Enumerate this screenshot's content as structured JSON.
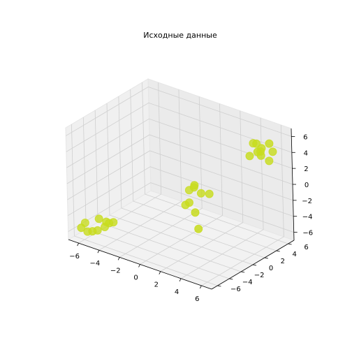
{
  "chart_data": {
    "type": "scatter",
    "title": "Исходные данные",
    "xlabel": "",
    "ylabel": "",
    "zlabel": "",
    "x_ticks": [
      "−6",
      "−4",
      "−2",
      "0",
      "2",
      "4",
      "6"
    ],
    "y_ticks": [
      "−6",
      "−4",
      "−2",
      "0",
      "2",
      "4",
      "6"
    ],
    "z_ticks": [
      "−6",
      "−4",
      "−2",
      "0",
      "2",
      "4",
      "6"
    ],
    "xlim": [
      -7,
      7
    ],
    "ylim": [
      -7,
      7
    ],
    "zlim": [
      -7,
      7
    ],
    "grid": true,
    "marker_color": "#c8dc1e",
    "points": [
      {
        "x": -6.2,
        "y": -5.5,
        "z": -5.2
      },
      {
        "x": -5.8,
        "y": -5.8,
        "z": -6.0
      },
      {
        "x": -5.2,
        "y": -6.0,
        "z": -5.6
      },
      {
        "x": -4.8,
        "y": -4.6,
        "z": -5.5
      },
      {
        "x": -5.0,
        "y": -5.2,
        "z": -4.3
      },
      {
        "x": -4.4,
        "y": -5.0,
        "z": -4.5
      },
      {
        "x": -4.6,
        "y": -4.2,
        "z": -5.1
      },
      {
        "x": -4.0,
        "y": -4.5,
        "z": -4.6
      },
      {
        "x": -5.4,
        "y": -4.8,
        "z": -6.1
      },
      {
        "x": -6.0,
        "y": -6.5,
        "z": -5.3
      },
      {
        "x": 0.8,
        "y": 1.0,
        "z": -0.5
      },
      {
        "x": 1.2,
        "y": 0.4,
        "z": 0.2
      },
      {
        "x": 0.2,
        "y": 1.2,
        "z": -1.2
      },
      {
        "x": 1.6,
        "y": 0.8,
        "z": -0.8
      },
      {
        "x": 0.5,
        "y": 0.0,
        "z": -2.4
      },
      {
        "x": 2.0,
        "y": 1.5,
        "z": -1.0
      },
      {
        "x": 1.0,
        "y": -0.2,
        "z": -1.8
      },
      {
        "x": 1.8,
        "y": -0.6,
        "z": -2.5
      },
      {
        "x": 2.2,
        "y": -0.8,
        "z": -4.3
      },
      {
        "x": 4.5,
        "y": 4.8,
        "z": 5.0
      },
      {
        "x": 5.0,
        "y": 4.5,
        "z": 5.3
      },
      {
        "x": 5.6,
        "y": 4.2,
        "z": 4.2
      },
      {
        "x": 5.2,
        "y": 5.0,
        "z": 4.6
      },
      {
        "x": 6.0,
        "y": 5.5,
        "z": 4.3
      },
      {
        "x": 4.8,
        "y": 5.5,
        "z": 3.8
      },
      {
        "x": 5.5,
        "y": 3.8,
        "z": 4.8
      },
      {
        "x": 6.2,
        "y": 4.6,
        "z": 5.8
      },
      {
        "x": 5.8,
        "y": 5.2,
        "z": 3.2
      },
      {
        "x": 4.6,
        "y": 4.0,
        "z": 3.8
      }
    ]
  }
}
